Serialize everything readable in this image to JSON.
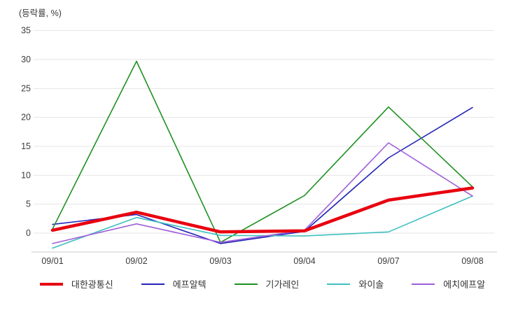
{
  "chart": {
    "unit_label": "(등락률, %)"
  },
  "chart_data": {
    "type": "line",
    "title": "(등락률, %)",
    "xlabel": "",
    "ylabel": "등락률 (%)",
    "categories": [
      "09/01",
      "09/02",
      "09/03",
      "09/04",
      "09/07",
      "09/08"
    ],
    "series": [
      {
        "name": "대한광통신",
        "color": "#e8000f",
        "width": 4.5,
        "values": [
          0.5,
          3.6,
          0.2,
          0.4,
          5.7,
          7.8
        ]
      },
      {
        "name": "에프알텍",
        "color": "#2424b8",
        "width": 1.6,
        "values": [
          1.5,
          3.2,
          -1.8,
          0.3,
          13.0,
          21.7
        ]
      },
      {
        "name": "기가레인",
        "color": "#1f9121",
        "width": 1.6,
        "values": [
          0.7,
          29.7,
          -1.6,
          6.5,
          21.8,
          8.0
        ]
      },
      {
        "name": "와이솔",
        "color": "#3fbfbf",
        "width": 1.6,
        "values": [
          -2.6,
          2.7,
          -0.4,
          -0.5,
          0.2,
          6.4
        ]
      },
      {
        "name": "에치에프알",
        "color": "#9f5fd9",
        "width": 1.6,
        "values": [
          -1.8,
          1.6,
          -1.6,
          0.5,
          15.6,
          6.4
        ]
      }
    ],
    "yticks": [
      35,
      30,
      25,
      20,
      15,
      10,
      5,
      0
    ],
    "ylim": [
      -3.3,
      36.5
    ],
    "grid": true,
    "legend_position": "bottom",
    "colors": {
      "gridline": "#e4e4e4",
      "axis_line": "#c9c9c9",
      "tick_text": "#3d3d3d",
      "background": "#ffffff"
    }
  }
}
